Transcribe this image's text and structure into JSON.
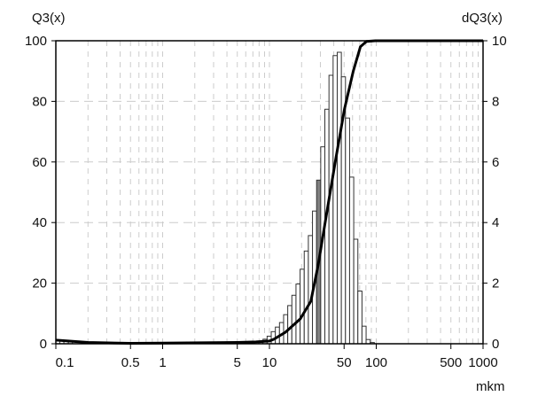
{
  "chart_data": {
    "type": "bar",
    "left_axis_label": "Q3(x)",
    "right_axis_label": "dQ3(x)",
    "xlabel": "mkm",
    "x_scale": "log",
    "xlim": [
      0.1,
      1000
    ],
    "ylim_left": [
      0,
      100
    ],
    "ylim_right": [
      0,
      10
    ],
    "grid": true,
    "x_ticks": [
      0.1,
      0.5,
      1,
      5,
      10,
      50,
      100,
      500,
      1000
    ],
    "x_tick_labels": [
      "0.1",
      "0.5",
      "1",
      "5",
      "10",
      "50",
      "100",
      "500",
      "1000"
    ],
    "left_ticks": [
      "0",
      "20",
      "40",
      "60",
      "80",
      "100"
    ],
    "right_ticks": [
      "0",
      "2",
      "4",
      "6",
      "8",
      "10"
    ],
    "colors": {
      "bar_fill": "#ffffff",
      "highlight_bar_fill": "#808080",
      "line": "#000000",
      "grid": "#cccccc"
    },
    "histogram": {
      "bins": [
        {
          "from": 0.1,
          "to": 0.109,
          "value": 0.12
        },
        {
          "from": 0.109,
          "to": 0.119,
          "value": 0.1
        },
        {
          "from": 0.119,
          "to": 0.131,
          "value": 0.08
        },
        {
          "from": 0.131,
          "to": 0.143,
          "value": 0.06
        },
        {
          "from": 6.1,
          "to": 6.66,
          "value": 0.03
        },
        {
          "from": 6.66,
          "to": 7.28,
          "value": 0.04
        },
        {
          "from": 7.28,
          "to": 7.96,
          "value": 0.05
        }
      ],
      "main_start": 7.96,
      "main_ratio": 1.093,
      "main_values": [
        0.04,
        0.15,
        0.25,
        0.4,
        0.55,
        0.7,
        0.96,
        1.26,
        1.6,
        1.97,
        2.46,
        3.06,
        3.57,
        4.38,
        5.4,
        6.5,
        7.74,
        8.86,
        9.51,
        9.62,
        8.81,
        7.45,
        5.5,
        3.45,
        1.74,
        0.58,
        0.14,
        0.04
      ],
      "highlight_index": 14
    },
    "cumulative": {
      "points": [
        [
          0.1,
          1.2
        ],
        [
          0.2,
          0.45
        ],
        [
          0.5,
          0.15
        ],
        [
          1,
          0.2
        ],
        [
          5,
          0.45
        ],
        [
          7.5,
          0.6
        ],
        [
          10,
          0.9
        ],
        [
          11,
          1.5
        ],
        [
          14.1,
          3.8
        ],
        [
          19.4,
          8.2
        ],
        [
          24.4,
          14
        ],
        [
          28.5,
          25.7
        ],
        [
          34.4,
          43.3
        ],
        [
          41.7,
          60.8
        ],
        [
          50.5,
          77.5
        ],
        [
          61,
          90
        ],
        [
          71,
          98
        ],
        [
          81,
          99.8
        ],
        [
          98,
          100
        ],
        [
          1000,
          100
        ]
      ]
    }
  }
}
